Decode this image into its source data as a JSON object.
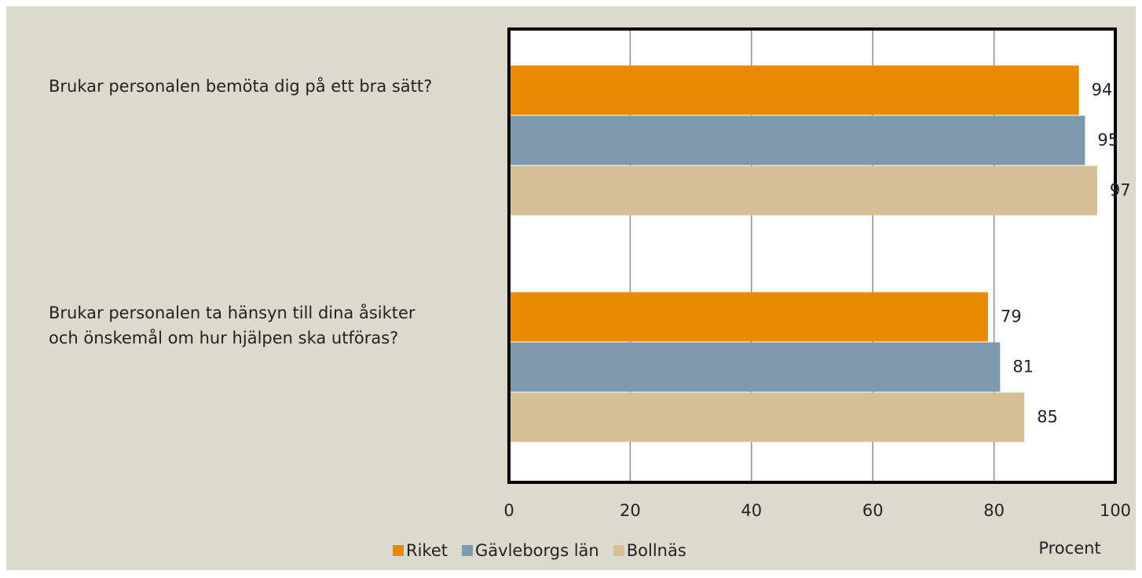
{
  "chart_data": {
    "type": "hbar",
    "categories": [
      "Brukar personalen bemöta dig på ett bra sätt?",
      "Brukar personalen ta hänsyn till dina åsikter och önskemål om hur hjälpen ska utföras?"
    ],
    "series": [
      {
        "name": "Riket",
        "color": "#ea8a00",
        "values": [
          94,
          79
        ]
      },
      {
        "name": "Gävleborgs län",
        "color": "#7f9bab",
        "values": [
          95,
          81
        ]
      },
      {
        "name": "Bollnäs",
        "color": "#d4bf96",
        "values": [
          97,
          85
        ]
      }
    ],
    "xlabel": "Procent",
    "xlim": [
      0,
      100
    ],
    "xticks": [
      0,
      20,
      40,
      60,
      80,
      100
    ],
    "grid": true
  }
}
